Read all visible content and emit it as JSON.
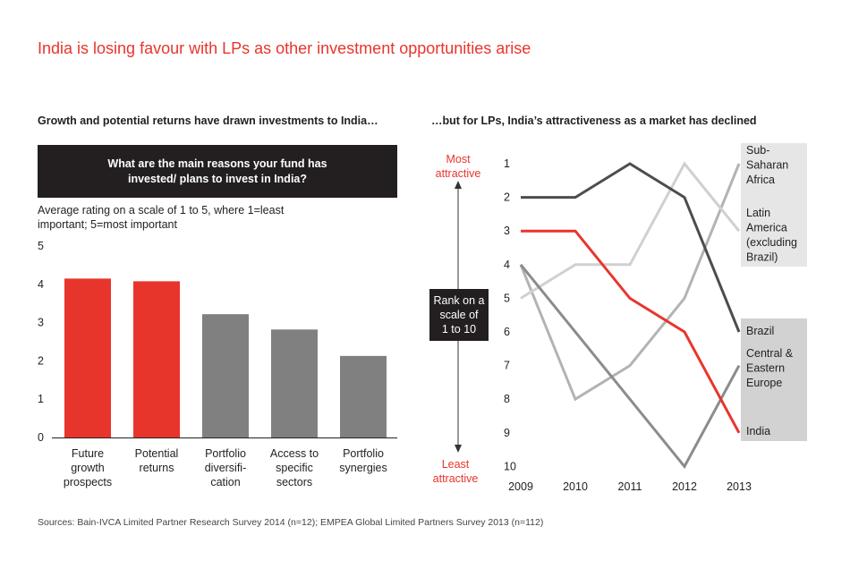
{
  "title": "India is losing favour with LPs as other investment opportunities arise",
  "left": {
    "subtitle": "Growth and potential returns have drawn investments to India…",
    "question": "What are the main reasons your fund has invested/ plans to invest in India?",
    "rating_note": "Average rating on a scale of 1 to 5, where 1=least important; 5=most important"
  },
  "right": {
    "subtitle": "…but for LPs, India’s attractiveness as a market has declined",
    "top_label": [
      "Most",
      "attractive"
    ],
    "bottom_label": [
      "Least",
      "attractive"
    ],
    "rank_box": [
      "Rank on a",
      "scale of",
      "1 to 10"
    ]
  },
  "source": "Sources: Bain-IVCA Limited Partner Research Survey 2014 (n=12); EMPEA Global Limited Partners Survey 2013 (n=112)",
  "colors": {
    "red": "#e8352c",
    "gray_bar": "#808080",
    "dark_line": "#4d4d4d",
    "mid_line": "#8c8c8c",
    "light_line": "#b3b3b3",
    "pale_line": "#d0d0d0",
    "label_bg": "#e6e6e6",
    "label_bg_dark": "#d2d2d2"
  },
  "chart_data": [
    {
      "type": "bar",
      "categories": [
        [
          "Future",
          "growth",
          "prospects"
        ],
        [
          "Potential",
          "returns"
        ],
        [
          "Portfolio",
          "diversifi-",
          "cation"
        ],
        [
          "Access to",
          "specific",
          "sectors"
        ],
        [
          "Portfolio",
          "synergies"
        ]
      ],
      "values": [
        4.15,
        4.08,
        3.22,
        2.82,
        2.13
      ],
      "highlight": [
        true,
        true,
        false,
        false,
        false
      ],
      "ylim": [
        0,
        5
      ],
      "yticks": [
        "0",
        "1",
        "2",
        "3",
        "4",
        "5"
      ]
    },
    {
      "type": "line",
      "x": [
        "2009",
        "2010",
        "2011",
        "2012",
        "2013"
      ],
      "ylim": [
        1,
        10
      ],
      "yticks": [
        "1",
        "2",
        "3",
        "4",
        "5",
        "6",
        "7",
        "8",
        "9",
        "10"
      ],
      "inverted": true,
      "series": [
        {
          "name": [
            "Sub-",
            "Saharan",
            "Africa"
          ],
          "values": [
            4,
            8,
            7,
            5,
            1
          ],
          "color": "#b3b3b3"
        },
        {
          "name": [
            "Latin",
            "America",
            "(excluding",
            "Brazil)"
          ],
          "values": [
            5,
            4,
            4,
            1,
            3
          ],
          "color": "#d0d0d0"
        },
        {
          "name": [
            "Brazil"
          ],
          "values": [
            2,
            2,
            1,
            2,
            6
          ],
          "color": "#4d4d4d"
        },
        {
          "name": [
            "Central &",
            "Eastern",
            "Europe"
          ],
          "values": [
            4,
            6,
            8,
            10,
            7
          ],
          "color": "#8c8c8c"
        },
        {
          "name": [
            "India"
          ],
          "values": [
            3,
            3,
            5,
            6,
            9
          ],
          "color": "#e8352c"
        }
      ]
    }
  ]
}
